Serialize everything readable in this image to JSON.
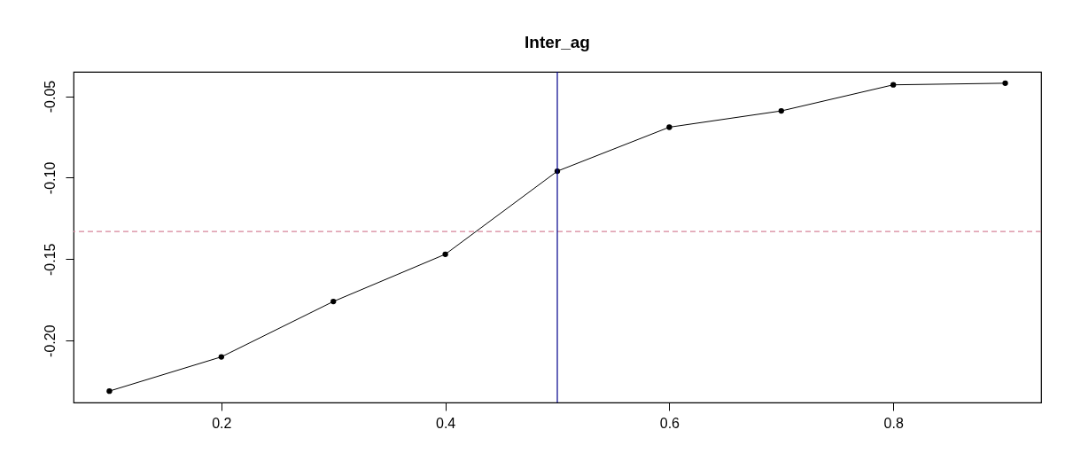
{
  "chart_data": {
    "type": "line",
    "title": "Inter_ag",
    "x": [
      0.1,
      0.2,
      0.3,
      0.4,
      0.5,
      0.6,
      0.7,
      0.8,
      0.9
    ],
    "series": [
      {
        "color": "#000000",
        "values": [
          -0.231,
          -0.21,
          -0.176,
          -0.147,
          -0.096,
          -0.069,
          -0.059,
          -0.043,
          -0.042
        ]
      }
    ],
    "xlim": [
      0.068,
      0.932
    ],
    "xticks": [
      0.2,
      0.4,
      0.6,
      0.8
    ],
    "ylim": [
      -0.238,
      -0.035
    ],
    "yticks": [
      {
        "value": -0.2,
        "label": "-0.20"
      },
      {
        "value": -0.15,
        "label": "-0.15"
      },
      {
        "value": -0.1,
        "label": "-0.10"
      },
      {
        "value": -0.05,
        "label": "-0.05"
      }
    ],
    "marker": "circle",
    "line_style": "solid",
    "ref_lines": [
      {
        "axis": "y",
        "value": -0.133,
        "color": "#d6849a",
        "line_style": "dashed"
      },
      {
        "axis": "x",
        "value": 0.5,
        "color": "#00008b",
        "line_style": "solid"
      }
    ]
  }
}
